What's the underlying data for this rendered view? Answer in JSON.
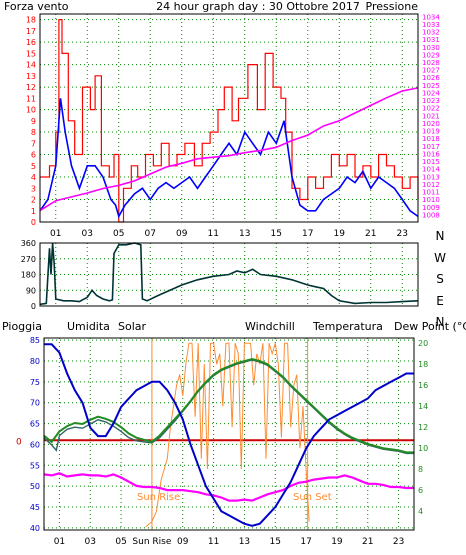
{
  "colors": {
    "wind": "#ff0000",
    "wind_avg": "#0000ff",
    "pressure": "#ff00ff",
    "direction": "#003333",
    "humidity": "#0000cc",
    "solar": "#ff8c33",
    "windchill": "#336666",
    "temperature": "#228b22",
    "dewpoint": "#ff00ff",
    "rain": "#cc0000",
    "grid": "#008800",
    "frame": "#000000"
  },
  "chart_data": [
    {
      "type": "line",
      "title": "24 hour graph day : 30 Ottobre 2017",
      "ylabel": "Forza vento",
      "y2label": "Pressione",
      "ylim": [
        0,
        18.5
      ],
      "y2lim": [
        1007,
        1034.3
      ],
      "xlim": [
        0,
        24
      ],
      "x_ticks": [
        "01",
        "03",
        "05",
        "07",
        "09",
        "11",
        "13",
        "15",
        "17",
        "19",
        "21",
        "23"
      ],
      "y_ticks": [
        0,
        1,
        2,
        3,
        4,
        5,
        6,
        7,
        8,
        9,
        10,
        11,
        12,
        13,
        14,
        15,
        16,
        17,
        18
      ],
      "y2_ticks": [
        1008,
        1009,
        1010,
        1011,
        1012,
        1013,
        1014,
        1015,
        1016,
        1017,
        1018,
        1019,
        1020,
        1021,
        1022,
        1023,
        1024,
        1025,
        1026,
        1027,
        1028,
        1029,
        1030,
        1031,
        1032,
        1033,
        1034
      ],
      "series": [
        {
          "key": "gust",
          "x": [
            0,
            0.6,
            1,
            1.2,
            1.4,
            1.8,
            2.2,
            2.7,
            3.2,
            3.5,
            3.9,
            4.4,
            4.7,
            5,
            5.3,
            5.8,
            6.2,
            6.7,
            7.2,
            7.7,
            8.2,
            8.7,
            9.2,
            9.8,
            10.3,
            10.8,
            11.3,
            11.7,
            12.2,
            12.6,
            13.2,
            13.8,
            14.3,
            14.8,
            15.3,
            15.6,
            16,
            16.5,
            17,
            17.5,
            18,
            18.5,
            19,
            19.5,
            20,
            20.5,
            21,
            21.5,
            22,
            22.5,
            23,
            23.5,
            24
          ],
          "values": [
            4,
            5,
            8,
            18,
            15,
            9,
            6,
            12,
            10,
            13,
            5,
            4,
            6,
            0,
            3,
            5,
            4,
            6,
            5,
            7,
            5,
            6,
            7,
            5,
            7,
            8,
            10,
            12,
            9,
            11,
            14,
            10,
            15,
            12,
            11,
            8,
            3,
            2,
            4,
            3,
            4,
            6,
            5,
            6,
            4,
            5,
            4,
            6,
            5,
            4,
            3,
            4,
            2
          ]
        },
        {
          "key": "avg",
          "x": [
            0,
            0.5,
            1,
            1.3,
            1.6,
            2,
            2.5,
            3,
            3.5,
            4,
            4.5,
            4.8,
            5,
            5.4,
            6,
            6.5,
            7,
            7.5,
            8,
            8.5,
            9,
            9.5,
            10,
            10.5,
            11,
            11.5,
            12,
            12.5,
            13,
            13.5,
            14,
            14.5,
            15,
            15.5,
            16,
            16.5,
            17,
            17.5,
            18,
            18.5,
            19,
            19.5,
            20,
            20.5,
            21,
            21.5,
            22,
            22.5,
            23,
            23.5,
            24
          ],
          "values": [
            1,
            2,
            5,
            11,
            8,
            5,
            3,
            5,
            5,
            4,
            2,
            1.5,
            0.5,
            1.5,
            2.5,
            3,
            2,
            3,
            3.5,
            3,
            3.5,
            4,
            3,
            4,
            5,
            6,
            7,
            6,
            8,
            7,
            6,
            8,
            7,
            9,
            4,
            1.5,
            1,
            1,
            2,
            2.5,
            3,
            4,
            3.5,
            4.5,
            3,
            4,
            3.5,
            3,
            2,
            1,
            0.5
          ]
        },
        {
          "key": "pressure",
          "x": [
            0,
            1,
            2,
            3,
            4,
            5,
            6,
            7,
            8,
            9,
            10,
            11,
            12,
            13,
            14,
            15,
            16,
            17,
            18,
            19,
            20,
            21,
            22,
            23,
            24
          ],
          "values": [
            1008.5,
            1009.8,
            1010.3,
            1010.8,
            1011.4,
            1011.8,
            1012.4,
            1013.3,
            1014.2,
            1014.7,
            1015.3,
            1015.5,
            1015.7,
            1016.1,
            1016.4,
            1016.8,
            1017.7,
            1018.4,
            1019.6,
            1020.3,
            1021.3,
            1022.3,
            1023.3,
            1024.2,
            1024.6
          ]
        }
      ]
    },
    {
      "type": "line",
      "title": "",
      "ylim": [
        0,
        360
      ],
      "xlim": [
        0,
        24
      ],
      "y_ticks": [
        0,
        90,
        180,
        270,
        360
      ],
      "right_labels": [
        "N",
        "W",
        "S",
        "E",
        "N"
      ],
      "series": [
        {
          "key": "direction",
          "x": [
            0,
            0.4,
            0.6,
            0.7,
            0.8,
            0.9,
            1,
            1.5,
            2,
            2.5,
            3,
            3.3,
            3.6,
            4,
            4.4,
            4.6,
            4.7,
            5,
            5.5,
            6,
            6.4,
            6.5,
            6.8,
            7.5,
            8,
            9,
            10,
            11,
            12,
            12.5,
            13,
            13.5,
            14,
            15,
            16,
            17,
            17.5,
            18,
            18.5,
            19,
            20,
            21,
            22,
            23,
            24
          ],
          "values": [
            10,
            15,
            330,
            180,
            360,
            240,
            40,
            30,
            30,
            25,
            50,
            90,
            60,
            40,
            30,
            35,
            300,
            350,
            350,
            360,
            350,
            40,
            30,
            60,
            80,
            120,
            150,
            170,
            180,
            200,
            190,
            210,
            180,
            170,
            150,
            120,
            110,
            100,
            60,
            30,
            15,
            20,
            20,
            25,
            30
          ]
        }
      ]
    },
    {
      "type": "line",
      "title": "",
      "labels": [
        "Pioggia",
        "Umidita",
        "Solar",
        "Windchill",
        "Temperatura",
        "Dew Point (°C)"
      ],
      "ylim": [
        39.5,
        85.5
      ],
      "y2lim": [
        2.2,
        20.5
      ],
      "xlim": [
        0,
        24
      ],
      "y_ticks": [
        40,
        45,
        50,
        55,
        60,
        65,
        70,
        75,
        80,
        85
      ],
      "y2_ticks": [
        4,
        6,
        8,
        10,
        12,
        14,
        16,
        18,
        20
      ],
      "x_ticks": [
        "01",
        "03",
        "05",
        "Sun Rise",
        "09",
        "11",
        "13",
        "15",
        "17",
        "19",
        "21",
        "23"
      ],
      "rain_value": 0,
      "annotations": [
        "Sun Rise",
        "Sun Set"
      ],
      "series": [
        {
          "key": "humidity",
          "x": [
            0,
            0.5,
            1,
            1.5,
            2,
            2.5,
            3,
            3.5,
            4,
            4.5,
            5,
            5.5,
            6,
            6.5,
            7,
            7.5,
            8,
            8.5,
            9,
            9.5,
            10,
            10.5,
            11,
            11.5,
            12,
            12.5,
            13,
            13.5,
            14,
            14.5,
            15,
            15.5,
            16,
            16.5,
            17,
            17.5,
            18,
            18.5,
            19,
            19.5,
            20,
            20.5,
            21,
            21.5,
            22,
            22.5,
            23,
            23.5,
            24
          ],
          "values": [
            84,
            84,
            82,
            77,
            73,
            70,
            64,
            62,
            62,
            65,
            69,
            71,
            73,
            74,
            75,
            75,
            73,
            70,
            66,
            60,
            55,
            50,
            47,
            44,
            43,
            42,
            41,
            40.5,
            41,
            43,
            45,
            48,
            51,
            55,
            59,
            62,
            64,
            66,
            67,
            68,
            69,
            70,
            71,
            73,
            74,
            75,
            76,
            77,
            77
          ]
        },
        {
          "key": "temperature",
          "x": [
            0,
            0.5,
            1,
            1.5,
            2,
            2.5,
            3,
            3.5,
            4,
            4.5,
            5,
            5.5,
            6,
            6.5,
            7,
            7.5,
            8,
            8.5,
            9,
            9.5,
            10,
            10.5,
            11,
            11.5,
            12,
            12.5,
            13,
            13.5,
            14,
            14.5,
            15,
            15.5,
            16,
            16.5,
            17,
            17.5,
            18,
            18.5,
            19,
            19.5,
            20,
            20.5,
            21,
            21.5,
            22,
            22.5,
            23,
            23.5,
            24
          ],
          "values": [
            11.2,
            10.6,
            11.6,
            12.1,
            12.4,
            12.3,
            12.7,
            13.0,
            12.8,
            12.5,
            12.0,
            11.4,
            11.0,
            10.8,
            10.6,
            11.2,
            12.0,
            12.8,
            13.6,
            14.5,
            15.5,
            16.3,
            17.0,
            17.5,
            17.8,
            18.1,
            18.3,
            18.5,
            18.3,
            18.0,
            17.4,
            16.8,
            16.0,
            15.3,
            14.6,
            13.9,
            13.2,
            12.5,
            11.9,
            11.4,
            11.0,
            10.7,
            10.4,
            10.2,
            10.0,
            9.9,
            9.8,
            9.6,
            9.6
          ]
        },
        {
          "key": "windchill",
          "x": [
            0,
            0.5,
            0.8,
            1,
            1.5,
            2,
            2.5,
            3,
            3.5,
            4,
            4.5,
            5,
            5.5,
            6,
            6.5,
            7,
            7.5,
            8,
            8.5,
            9,
            9.5,
            10,
            10.5,
            11,
            11.5,
            12,
            12.5,
            13,
            13.5,
            14,
            14.5,
            15,
            15.5,
            16,
            16.5,
            17,
            17.5,
            18,
            18.5,
            19,
            19.5,
            20,
            20.5,
            21,
            21.5,
            22,
            22.5,
            23,
            23.5,
            24
          ],
          "values": [
            11.0,
            10.3,
            9.8,
            11.2,
            11.8,
            12.0,
            11.9,
            12.3,
            12.7,
            12.5,
            12.1,
            11.6,
            11.0,
            10.7,
            10.6,
            10.5,
            11.0,
            11.8,
            12.6,
            13.5,
            14.4,
            15.4,
            16.2,
            16.9,
            17.4,
            17.7,
            18.0,
            18.2,
            18.4,
            18.2,
            17.9,
            17.3,
            16.7,
            15.9,
            15.2,
            14.5,
            13.8,
            13.1,
            12.4,
            11.8,
            11.3,
            10.9,
            10.6,
            10.3,
            10.1,
            9.9,
            9.8,
            9.7,
            9.5,
            9.5
          ]
        },
        {
          "key": "dewpoint",
          "x": [
            0,
            0.5,
            1,
            1.5,
            2,
            2.5,
            3,
            3.5,
            4,
            4.5,
            5,
            5.5,
            6,
            6.5,
            7,
            7.5,
            8,
            8.5,
            9,
            9.5,
            10,
            10.5,
            11,
            11.5,
            12,
            12.5,
            13,
            13.5,
            14,
            14.5,
            15,
            15.5,
            16,
            16.5,
            17,
            17.5,
            18,
            18.5,
            19,
            19.5,
            20,
            20.5,
            21,
            21.5,
            22,
            22.5,
            23,
            23.5,
            24
          ],
          "values": [
            7.5,
            7.4,
            7.6,
            7.3,
            7.4,
            7.5,
            7.4,
            7.4,
            7.3,
            7.5,
            7.2,
            6.8,
            6.4,
            6.3,
            6.3,
            6.2,
            6.0,
            6.0,
            6.0,
            5.9,
            5.8,
            5.6,
            5.5,
            5.3,
            5.0,
            5.0,
            5.1,
            5.0,
            5.3,
            5.6,
            5.8,
            6.0,
            6.4,
            6.7,
            6.8,
            7.0,
            7.1,
            7.2,
            7.2,
            7.4,
            7.2,
            6.9,
            6.6,
            6.6,
            6.5,
            6.3,
            6.3,
            6.2,
            6.2
          ]
        },
        {
          "key": "solar",
          "x": [
            6.6,
            7,
            7.3,
            7.6,
            8,
            8.2,
            8.4,
            8.6,
            8.8,
            9,
            9.2,
            9.4,
            9.6,
            9.8,
            10,
            10.2,
            10.4,
            10.6,
            10.8,
            11,
            11.2,
            11.4,
            11.6,
            11.8,
            12,
            12.2,
            12.4,
            12.6,
            12.8,
            13,
            13.2,
            13.4,
            13.6,
            13.8,
            14,
            14.2,
            14.4,
            14.6,
            14.8,
            15,
            15.2,
            15.4,
            15.6,
            15.8,
            16,
            16.2,
            16.4,
            16.6,
            16.8,
            17,
            17.2
          ],
          "values": [
            2.5,
            3,
            4,
            7,
            9,
            12,
            14,
            16,
            17,
            15,
            18,
            20,
            20,
            13,
            20,
            9,
            18,
            8,
            20,
            20,
            18,
            19,
            14,
            20,
            20,
            12,
            20,
            19,
            8,
            20,
            20,
            20,
            16,
            19,
            18,
            20,
            9,
            20,
            19,
            20,
            18,
            11,
            20,
            20,
            12,
            16,
            17,
            10,
            14,
            8,
            3
          ]
        }
      ]
    }
  ]
}
